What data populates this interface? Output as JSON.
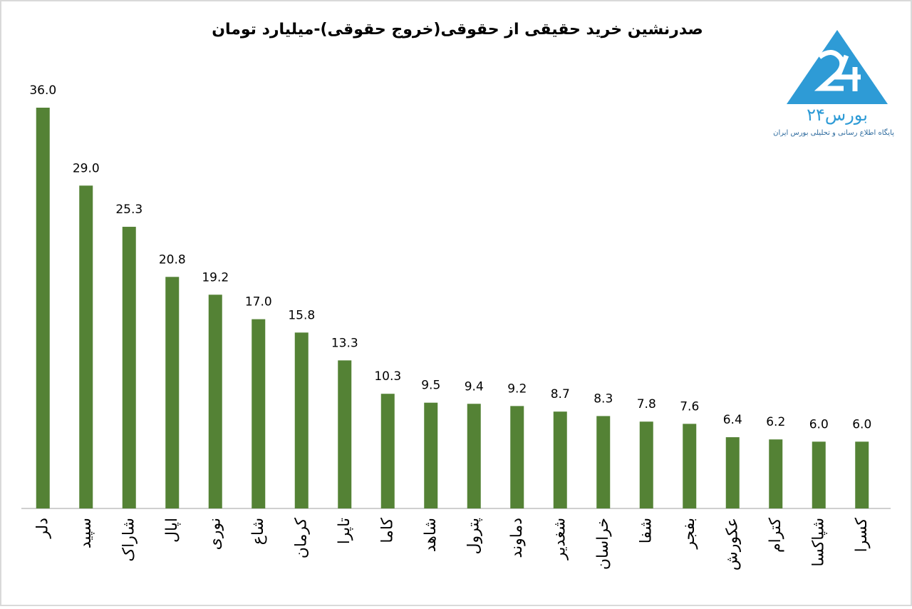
{
  "chart_data": {
    "type": "bar",
    "title": "صدرنشین خرید حقیقی از حقوقی(خروج حقوقی)-میلیارد تومان",
    "categories": [
      "دلر",
      "سپید",
      "شاراک",
      "اپال",
      "نوری",
      "شاع",
      "کرمان",
      "تاپرا",
      "کاما",
      "شاهد",
      "پترول",
      "دماوند",
      "شغدیر",
      "خراسان",
      "شفا",
      "بفجر",
      "عکورش",
      "کترام",
      "شپاکسا",
      "کسرا"
    ],
    "values": [
      36.0,
      29.0,
      25.3,
      20.8,
      19.2,
      17.0,
      15.8,
      13.3,
      10.3,
      9.5,
      9.4,
      9.2,
      8.7,
      8.3,
      7.8,
      7.6,
      6.4,
      6.2,
      6.0,
      6.0
    ],
    "value_labels": [
      "36.0",
      "29.0",
      "25.3",
      "20.8",
      "19.2",
      "17.0",
      "15.8",
      "13.3",
      "10.3",
      "9.5",
      "9.4",
      "9.2",
      "8.7",
      "8.3",
      "7.8",
      "7.6",
      "6.4",
      "6.2",
      "6.0",
      "6.0"
    ],
    "color": "#548235",
    "ylim": [
      0,
      36
    ]
  },
  "logo": {
    "name": "بورس۲۴",
    "tagline": "پایگاه اطلاع رسانی و تحلیلی بورس ایران"
  }
}
